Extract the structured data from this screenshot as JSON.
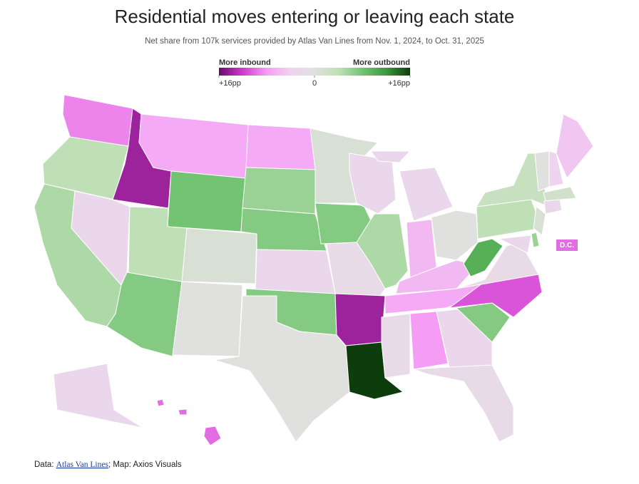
{
  "chart_data": {
    "type": "choropleth",
    "title": "Residential moves entering or leaving each state",
    "subtitle": "Net share from 107k services provided by Atlas Van Lines from Nov. 1, 2024, to Oct. 31, 2025",
    "legend": {
      "left_label": "More inbound",
      "right_label": "More outbound"
    },
    "scale_lim": [
      -16,
      16
    ],
    "scale_ticks": [
      {
        "value": -16,
        "label": "+16pp"
      },
      0,
      {
        "value": 16,
        "label": "+16pp"
      }
    ],
    "colors": [
      "#6a0a6a",
      "#cf3ccf",
      "#f59cf5",
      "#efd4ef",
      "#e0e0df",
      "#bfe0b6",
      "#72c372",
      "#3c9a3c",
      "#0d3d0d"
    ],
    "values": [
      -9,
      4,
      5,
      -14,
      -3,
      -7,
      8,
      4,
      7,
      1,
      0,
      -7,
      6,
      7,
      -3,
      7,
      0,
      1,
      7,
      -2,
      -14,
      16,
      -3,
      5,
      -3,
      -6,
      0,
      -6,
      -7,
      -2,
      -8,
      -3,
      -2,
      7,
      -11,
      -2,
      10,
      4,
      3,
      -3,
      6,
      1,
      2,
      -3,
      0,
      -4,
      -5,
      -3,
      -10
    ],
    "callout": {
      "label": "D.C.",
      "value": -10
    },
    "source": {
      "prefix": "Data: ",
      "link": "Atlas Van Lines",
      "suffix": "; Map: Axios Visuals"
    }
  }
}
